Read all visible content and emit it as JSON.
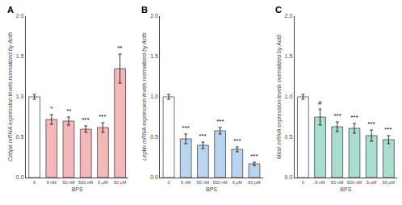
{
  "chart_data": [
    {
      "type": "bar",
      "title": "A",
      "ylabel": "Cebpa mRNA expression levels normalized by Actb",
      "xlabel": "BPS",
      "categories": [
        "0",
        "5 nM",
        "50 nM",
        "500 nM",
        "5 μM",
        "50 μM"
      ],
      "values": [
        1.0,
        0.72,
        0.7,
        0.6,
        0.62,
        1.35
      ],
      "errors": [
        0.03,
        0.06,
        0.05,
        0.04,
        0.06,
        0.18
      ],
      "colors": [
        "#ffffff",
        "#f4b8b8",
        "#f4b8b8",
        "#f4b8b8",
        "#f4b8b8",
        "#f4b8b8"
      ],
      "ylim": [
        0.0,
        2.0
      ],
      "yticks": [
        {
          "value": 0.0,
          "label": "0.0"
        },
        0.5,
        {
          "value": 1.0,
          "label": "1.0"
        },
        1.5,
        {
          "value": 2.0,
          "label": "2.0"
        }
      ],
      "grid": false,
      "annotations": [
        {
          "category": "5 nM",
          "text": "*"
        },
        {
          "category": "50 nM",
          "text": "**"
        },
        {
          "category": "500 nM",
          "text": "***"
        },
        {
          "category": "5 μM",
          "text": "***"
        },
        {
          "category": "50 μM",
          "text": "**"
        }
      ]
    },
    {
      "type": "bar",
      "title": "B",
      "ylabel": "Leptin mRNA expression levels normalized by Actb",
      "xlabel": "BPS",
      "categories": [
        "0",
        "5 nM",
        "50 nM",
        "500 nM",
        "5 μM",
        "50 μM"
      ],
      "values": [
        1.0,
        0.48,
        0.4,
        0.58,
        0.35,
        0.17
      ],
      "errors": [
        0.03,
        0.06,
        0.04,
        0.04,
        0.03,
        0.02
      ],
      "colors": [
        "#ffffff",
        "#b8d4f0",
        "#b8d4f0",
        "#b8d4f0",
        "#b8d4f0",
        "#b8d4f0"
      ],
      "ylim": [
        0.0,
        2.0
      ],
      "yticks": [
        {
          "value": 0.0,
          "label": "0.0"
        },
        0.5,
        {
          "value": 1.0,
          "label": "1.0"
        },
        1.5,
        {
          "value": 2.0,
          "label": "2.0"
        }
      ],
      "grid": false,
      "annotations": [
        {
          "category": "5 nM",
          "text": "***"
        },
        {
          "category": "50 nM",
          "text": "***"
        },
        {
          "category": "500 nM",
          "text": "***"
        },
        {
          "category": "5 μM",
          "text": "***"
        },
        {
          "category": "50 μM",
          "text": "***"
        }
      ]
    },
    {
      "type": "bar",
      "title": "C",
      "ylabel": "Mest mRNA expression levels normalized by Actb",
      "xlabel": "BPS",
      "categories": [
        "0",
        "5 nM",
        "50 nM",
        "500 nM",
        "5 μM",
        "50 μM"
      ],
      "values": [
        1.0,
        0.75,
        0.63,
        0.61,
        0.52,
        0.47
      ],
      "errors": [
        0.03,
        0.1,
        0.06,
        0.06,
        0.07,
        0.05
      ],
      "colors": [
        "#ffffff",
        "#a8ddd0",
        "#a8ddd0",
        "#a8ddd0",
        "#a8ddd0",
        "#a8ddd0"
      ],
      "ylim": [
        0.0,
        2.0
      ],
      "yticks": [
        {
          "value": 0.0,
          "label": "0.0"
        },
        0.5,
        {
          "value": 1.0,
          "label": "1.0"
        },
        1.5,
        {
          "value": 2.0,
          "label": "2.0"
        }
      ],
      "grid": false,
      "annotations": [
        {
          "category": "5 nM",
          "text": "#"
        },
        {
          "category": "50 nM",
          "text": "***"
        },
        {
          "category": "500 nM",
          "text": "***"
        },
        {
          "category": "5 μM",
          "text": "***"
        },
        {
          "category": "50 μM",
          "text": "***"
        }
      ]
    }
  ]
}
